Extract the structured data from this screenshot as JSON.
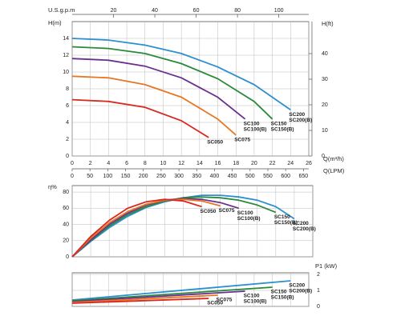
{
  "chart_data": [
    {
      "type": "line",
      "y_label": "H(m)",
      "y2_label": "H(ft)",
      "x_label": "Q(m³/h)",
      "x2_label": "U.S.g.p.m",
      "x3_label": "Q(LPM)",
      "xlim": [
        0,
        26
      ],
      "xticks": [
        0,
        2,
        4,
        6,
        8,
        10,
        12,
        14,
        16,
        18,
        20,
        22,
        24,
        26
      ],
      "x_tick_labels": true,
      "ylim": [
        0,
        16
      ],
      "yticks": [
        0,
        2,
        4,
        6,
        8,
        10,
        12,
        14
      ],
      "y_axis_side": "left",
      "y2lim": [
        0,
        52.5
      ],
      "y2ticks": [
        0,
        10,
        20,
        30,
        40
      ],
      "x2lim": [
        0,
        114.5
      ],
      "x2ticks": [
        20,
        40,
        60,
        80,
        100
      ],
      "x3lim": [
        0,
        665
      ],
      "x3ticks": [
        0,
        50,
        100,
        150,
        200,
        250,
        300,
        350,
        400,
        450,
        500,
        550,
        600,
        650
      ],
      "grid": true,
      "series": [
        {
          "labels": [
            "SC200",
            "SC200(B)"
          ],
          "color": "#2b8fd0",
          "x": [
            0,
            4,
            8,
            12,
            16,
            20,
            24
          ],
          "values": [
            14,
            13.8,
            13.2,
            12.2,
            10.6,
            8.5,
            5.5
          ]
        },
        {
          "labels": [
            "SC150",
            "SC150(B)"
          ],
          "color": "#2a8a3a",
          "x": [
            0,
            4,
            8,
            12,
            16,
            20,
            22
          ],
          "values": [
            13,
            12.8,
            12.2,
            11,
            9.2,
            6.5,
            4.4
          ]
        },
        {
          "labels": [
            "SC100",
            "SC100(B)"
          ],
          "color": "#6b2f8f",
          "x": [
            0,
            4,
            8,
            12,
            16,
            19
          ],
          "values": [
            11.6,
            11.4,
            10.7,
            9.3,
            7,
            4.4
          ]
        },
        {
          "labels": [
            "SC075"
          ],
          "color": "#e87722",
          "x": [
            0,
            4,
            8,
            12,
            16,
            18
          ],
          "values": [
            9.5,
            9.3,
            8.5,
            7,
            4.4,
            2.5
          ]
        },
        {
          "labels": [
            "SC050"
          ],
          "color": "#d9281e",
          "x": [
            0,
            4,
            8,
            12,
            15
          ],
          "values": [
            6.7,
            6.5,
            5.8,
            4.2,
            2.2
          ]
        }
      ]
    },
    {
      "type": "line",
      "y_label": "η%",
      "xlim": [
        0,
        26
      ],
      "xticks": [
        0,
        2,
        4,
        6,
        8,
        10,
        12,
        14,
        16,
        18,
        20,
        22,
        24,
        26
      ],
      "x_tick_labels": false,
      "ylim": [
        0,
        88
      ],
      "yticks": [
        0,
        20,
        40,
        60,
        80
      ],
      "y_axis_side": "left",
      "grid": true,
      "series": [
        {
          "labels": [
            "SC200",
            "SC200(B)"
          ],
          "color": "#2b8fd0",
          "x": [
            0,
            2,
            4,
            6,
            8,
            10,
            12,
            14,
            16,
            18,
            20,
            22,
            24
          ],
          "values": [
            0,
            19,
            36,
            50,
            61,
            68,
            73,
            76,
            76,
            74,
            70,
            62,
            47
          ]
        },
        {
          "labels": [
            "SC150",
            "SC150(B)"
          ],
          "color": "#2a8a3a",
          "x": [
            0,
            2,
            4,
            6,
            8,
            10,
            12,
            14,
            16,
            18,
            20,
            22
          ],
          "values": [
            0,
            20,
            38,
            52,
            62,
            69,
            73,
            74,
            73,
            70,
            64,
            55
          ]
        },
        {
          "labels": [
            "SC100",
            "SC100(B)"
          ],
          "color": "#6b2f8f",
          "x": [
            0,
            2,
            4,
            6,
            8,
            10,
            12,
            14,
            16,
            18
          ],
          "values": [
            0,
            21,
            40,
            54,
            64,
            70,
            72,
            71,
            67,
            60
          ]
        },
        {
          "labels": [
            "SC075"
          ],
          "color": "#e87722",
          "x": [
            0,
            2,
            4,
            6,
            8,
            10,
            12,
            14,
            16
          ],
          "values": [
            0,
            23,
            42,
            56,
            65,
            70,
            71,
            69,
            63
          ]
        },
        {
          "labels": [
            "SC050"
          ],
          "color": "#d9281e",
          "x": [
            0,
            2,
            4,
            6,
            8,
            10,
            12,
            14
          ],
          "values": [
            0,
            25,
            45,
            60,
            68,
            71,
            69,
            62
          ]
        }
      ]
    },
    {
      "type": "line",
      "y_label": "P1 (kW)",
      "xlim": [
        0,
        26
      ],
      "xticks": [
        0,
        2,
        4,
        6,
        8,
        10,
        12,
        14,
        16,
        18,
        20,
        22,
        24,
        26
      ],
      "x_tick_labels": false,
      "ylim": [
        0,
        2.1
      ],
      "yticks": [
        0,
        1,
        2
      ],
      "y_axis_side": "right",
      "grid": true,
      "series": [
        {
          "labels": [
            "SC200",
            "SC200(B)"
          ],
          "color": "#2b8fd0",
          "x": [
            0,
            24
          ],
          "values": [
            0.4,
            1.6
          ]
        },
        {
          "labels": [
            "SC150",
            "SC150(B)"
          ],
          "color": "#2a8a3a",
          "x": [
            0,
            22
          ],
          "values": [
            0.35,
            1.2
          ]
        },
        {
          "labels": [
            "SC100",
            "SC100(B)"
          ],
          "color": "#6b2f8f",
          "x": [
            0,
            19
          ],
          "values": [
            0.3,
            0.95
          ]
        },
        {
          "labels": [
            "SC075"
          ],
          "color": "#e87722",
          "x": [
            0,
            16
          ],
          "values": [
            0.25,
            0.7
          ]
        },
        {
          "labels": [
            "SC050"
          ],
          "color": "#d9281e",
          "x": [
            0,
            15
          ],
          "values": [
            0.2,
            0.5
          ]
        }
      ]
    }
  ]
}
